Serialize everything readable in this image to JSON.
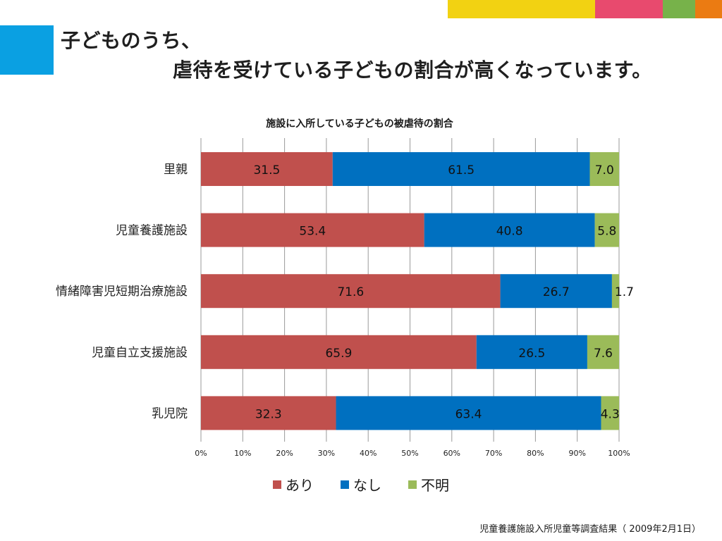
{
  "colors": {
    "deco": [
      "#f2d212",
      "#e84a6e",
      "#77b24a",
      "#eb7b12"
    ],
    "accent": "#0aa0e2"
  },
  "slide": {
    "title_line1": "子どものうち、",
    "title_line2": "虐待を受けている子どもの割合が高くなっています。",
    "source": "児童養護施設入所児童等調査結果（ 2009年2月1日）"
  },
  "chart_data": {
    "type": "bar",
    "orientation": "horizontal",
    "stacked": "percent",
    "title": "施設に入所している子どもの被虐待の割合",
    "categories": [
      "里親",
      "児童養護施設",
      "情緒障害児短期治療施設",
      "児童自立支援施設",
      "乳児院"
    ],
    "series": [
      {
        "name": "あり",
        "color": "#c0504d",
        "values": [
          31.5,
          53.4,
          71.6,
          65.9,
          32.3
        ],
        "labels": [
          "31.5",
          "53.4",
          "71.6",
          "65.9",
          "32.3"
        ]
      },
      {
        "name": "なし",
        "color": "#0070c0",
        "values": [
          61.5,
          40.8,
          26.7,
          26.5,
          63.4
        ],
        "labels": [
          "61.5",
          "40.8",
          "26.7",
          "26.5",
          "63.4"
        ]
      },
      {
        "name": "不明",
        "color": "#9bbb59",
        "values": [
          7.0,
          5.8,
          1.7,
          7.6,
          4.3
        ],
        "labels": [
          "7.0",
          "5.8",
          "1.7",
          "7.6",
          "4.3"
        ]
      }
    ],
    "xlim": [
      0,
      100
    ],
    "xticks": [
      "0%",
      "10%",
      "20%",
      "30%",
      "40%",
      "50%",
      "60%",
      "70%",
      "80%",
      "90%",
      "100%"
    ],
    "grid": true,
    "legend": "bottom"
  }
}
